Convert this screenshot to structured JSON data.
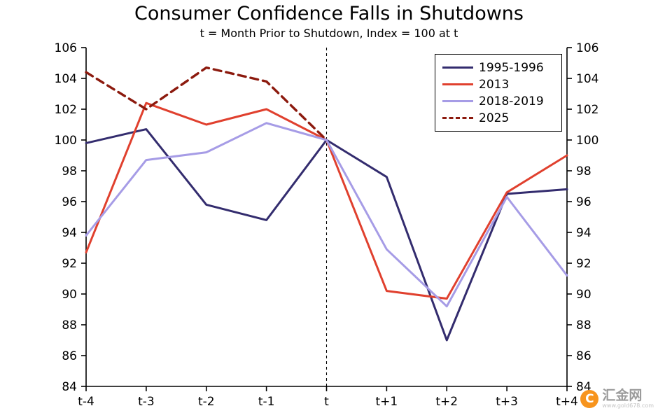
{
  "title": "Consumer Confidence Falls in Shutdowns",
  "subtitle": "t = Month Prior to Shutdown, Index = 100 at t",
  "chart_data": {
    "type": "line",
    "x": [
      "t-4",
      "t-3",
      "t-2",
      "t-1",
      "t",
      "t+1",
      "t+2",
      "t+3",
      "t+4"
    ],
    "ylim": [
      84,
      106
    ],
    "ytick_step": 2,
    "grid": false,
    "legend_position": "top-right",
    "vline_at": "t",
    "series": [
      {
        "name": "1995-1996",
        "color": "#332c6e",
        "dash": null,
        "values": [
          99.8,
          100.7,
          95.8,
          94.8,
          100,
          97.6,
          87.0,
          96.5,
          96.8
        ]
      },
      {
        "name": "2013",
        "color": "#e0402e",
        "dash": null,
        "values": [
          92.7,
          102.4,
          101.0,
          102.0,
          100,
          90.2,
          89.7,
          96.6,
          99.0
        ]
      },
      {
        "name": "2018-2019",
        "color": "#a69ce6",
        "dash": null,
        "values": [
          93.8,
          98.7,
          99.2,
          101.1,
          100,
          92.9,
          89.2,
          96.3,
          91.2
        ]
      },
      {
        "name": "2025",
        "color": "#8c1a0e",
        "dash": "11,7",
        "values": [
          104.4,
          102.0,
          104.7,
          103.8,
          100,
          null,
          null,
          null,
          null
        ]
      }
    ]
  },
  "watermark": {
    "logo_letter": "C",
    "name": "汇金网",
    "url": "www.gold678.com"
  }
}
